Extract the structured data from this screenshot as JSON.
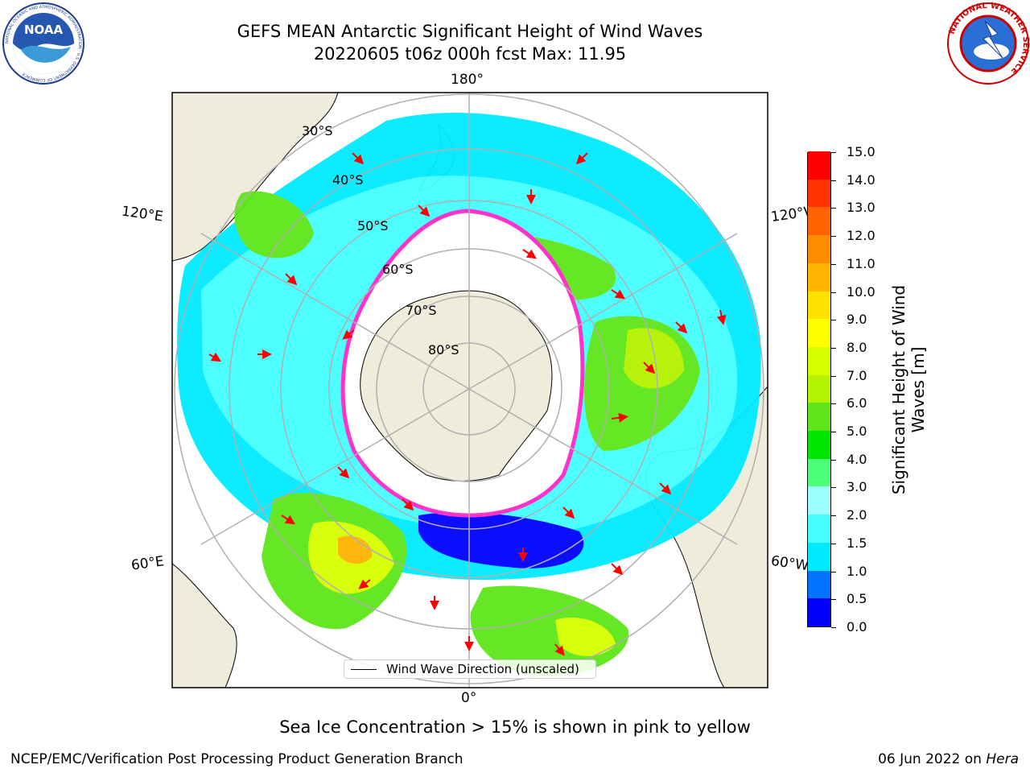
{
  "header": {
    "title_line1": "GEFS MEAN Antarctic Significant Height of Wind Waves",
    "title_line2": "20220605 t06z 000h fcst   Max: 11.95"
  },
  "logos": {
    "noaa": {
      "text": "NOAA",
      "ring_text": "NATIONAL OCEANIC AND ATMOSPHERIC ADMINISTRATION · U.S. DEPARTMENT OF COMMERCE"
    },
    "nws": {
      "ring_text": "NATIONAL WEATHER SERVICE"
    }
  },
  "map": {
    "longitude_labels": {
      "top": "180°",
      "bottom": "0°",
      "left_upper": "120°E",
      "left_lower": "60°E",
      "right_upper": "120°W",
      "right_lower": "60°W"
    },
    "latitude_labels": [
      "30°S",
      "40°S",
      "50°S",
      "60°S",
      "70°S",
      "80°S"
    ],
    "legend_label": "Wind Wave Direction (unscaled)",
    "colors": {
      "land": "#efecdc",
      "ice_edge": "#ff33cc",
      "arrow": "#ff0000",
      "grid": "#b0b0b0"
    }
  },
  "colorbar": {
    "title_line1": "Significant Height of Wind",
    "title_line2": "Waves [m]",
    "tick_labels": [
      "0.0",
      "0.5",
      "1.0",
      "1.5",
      "2.0",
      "3.0",
      "4.0",
      "5.0",
      "6.0",
      "7.0",
      "8.0",
      "9.0",
      "10.0",
      "11.0",
      "12.0",
      "13.0",
      "14.0",
      "15.0"
    ],
    "colors": [
      "#0000ff",
      "#0073ff",
      "#00eaff",
      "#45ffff",
      "#9dffff",
      "#4dff7a",
      "#00e600",
      "#5ee61a",
      "#b3f200",
      "#d6ff00",
      "#ffff00",
      "#ffe100",
      "#ffb400",
      "#ff8c00",
      "#ff6400",
      "#ff3200",
      "#ff0000"
    ]
  },
  "footer": {
    "note": "Sea Ice Concentration > 15% is shown in pink to yellow",
    "left": "NCEP/EMC/Verification Post Processing Product Generation Branch",
    "right_prefix": "06 Jun 2022 on ",
    "right_host": "Hera"
  }
}
